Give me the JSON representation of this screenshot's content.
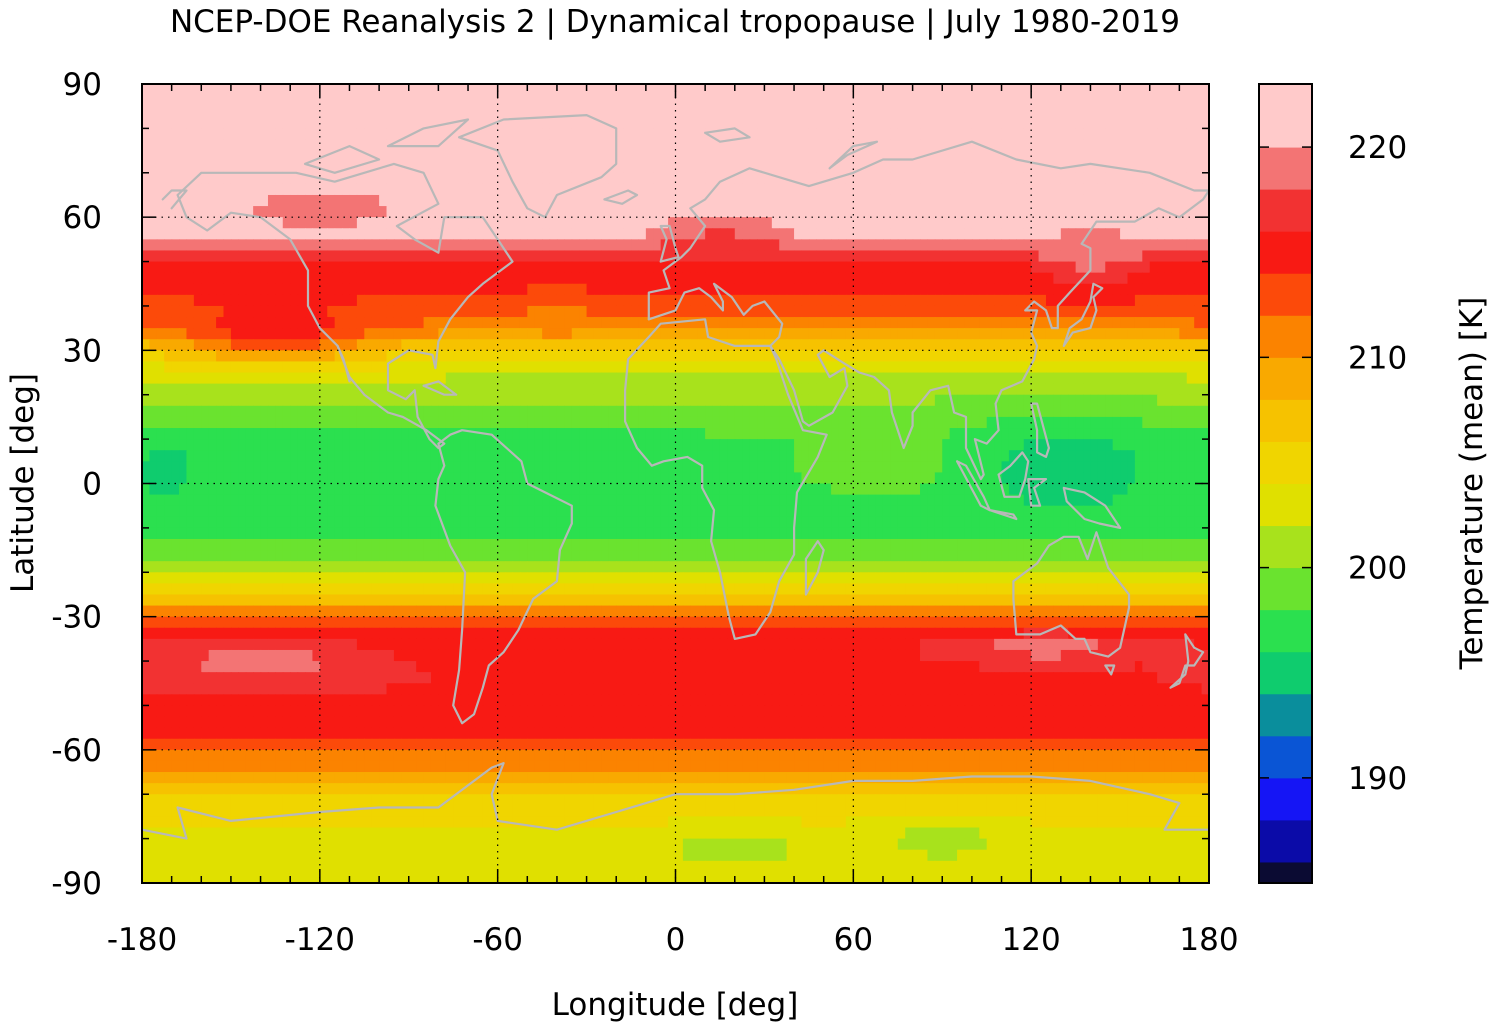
{
  "chart_data": {
    "type": "heatmap",
    "title": "NCEP-DOE Reanalysis 2 | Dynamical tropopause | July 1980-2019",
    "xlabel": "Longitude [deg]",
    "ylabel": "Latitude [deg]",
    "xlim": [
      -180,
      180
    ],
    "ylim": [
      -90,
      90
    ],
    "x_ticks": [
      "-180",
      "-120",
      "-60",
      "0",
      "60",
      "120",
      "180"
    ],
    "y_ticks": [
      "90",
      "60",
      "30",
      "0",
      "-30",
      "-60",
      "-90"
    ],
    "grid": true,
    "colorbar": {
      "label": "Temperature (mean) [K]",
      "range": [
        185,
        223
      ],
      "ticks": [
        "190",
        "200",
        "210",
        "220"
      ],
      "levels": [
        {
          "from": 185,
          "to": 186,
          "color": "#0b0b33"
        },
        {
          "from": 186,
          "to": 188,
          "color": "#0b0ba8"
        },
        {
          "from": 188,
          "to": 190,
          "color": "#1515f5"
        },
        {
          "from": 190,
          "to": 192,
          "color": "#0a55d5"
        },
        {
          "from": 192,
          "to": 194,
          "color": "#0a8e9c"
        },
        {
          "from": 194,
          "to": 196,
          "color": "#0fcc6e"
        },
        {
          "from": 196,
          "to": 198,
          "color": "#2be04f"
        },
        {
          "from": 198,
          "to": 200,
          "color": "#6ae32f"
        },
        {
          "from": 200,
          "to": 202,
          "color": "#a8e21c"
        },
        {
          "from": 202,
          "to": 204,
          "color": "#e0e000"
        },
        {
          "from": 204,
          "to": 206,
          "color": "#f0d500"
        },
        {
          "from": 206,
          "to": 208,
          "color": "#f6c200"
        },
        {
          "from": 208,
          "to": 210,
          "color": "#f9a900"
        },
        {
          "from": 210,
          "to": 212,
          "color": "#fb8300"
        },
        {
          "from": 212,
          "to": 214,
          "color": "#fc4a0a"
        },
        {
          "from": 214,
          "to": 216,
          "color": "#f81a14"
        },
        {
          "from": 216,
          "to": 218,
          "color": "#f23232"
        },
        {
          "from": 218,
          "to": 220,
          "color": "#f37474"
        },
        {
          "from": 220,
          "to": 223,
          "color": "#ffcaca"
        }
      ]
    },
    "coastline_color": "#b8b8b8",
    "zonal_profile": [
      {
        "lat": 90,
        "value": 221
      },
      {
        "lat": 55,
        "value": 221
      },
      {
        "lat": 48,
        "value": 215
      },
      {
        "lat": 42,
        "value": 214
      },
      {
        "lat": 35,
        "value": 211
      },
      {
        "lat": 30,
        "value": 205
      },
      {
        "lat": 24,
        "value": 202
      },
      {
        "lat": 15,
        "value": 199
      },
      {
        "lat": 8,
        "value": 197
      },
      {
        "lat": 0,
        "value": 197
      },
      {
        "lat": -8,
        "value": 197
      },
      {
        "lat": -15,
        "value": 199
      },
      {
        "lat": -22,
        "value": 203
      },
      {
        "lat": -27,
        "value": 208
      },
      {
        "lat": -30,
        "value": 213
      },
      {
        "lat": -35,
        "value": 215
      },
      {
        "lat": -45,
        "value": 216
      },
      {
        "lat": -55,
        "value": 215
      },
      {
        "lat": -60,
        "value": 212
      },
      {
        "lat": -66,
        "value": 209
      },
      {
        "lat": -72,
        "value": 205
      },
      {
        "lat": -82,
        "value": 203
      },
      {
        "lat": -90,
        "value": 203
      }
    ],
    "anomalies": [
      {
        "lon": -135,
        "lat": 35,
        "lon_radius": 45,
        "lat_radius": 9,
        "value": 215
      },
      {
        "lon": -120,
        "lat": 62,
        "lon_radius": 35,
        "lat_radius": 6,
        "value": 219
      },
      {
        "lon": 140,
        "lat": 52,
        "lon_radius": 18,
        "lat_radius": 10,
        "value": 219
      },
      {
        "lon": 15,
        "lat": 52,
        "lon_radius": 30,
        "lat_radius": 8,
        "value": 216
      },
      {
        "lon": -40,
        "lat": 38,
        "lon_radius": 14,
        "lat_radius": 6,
        "value": 211
      },
      {
        "lon": 75,
        "lat": 5,
        "lon_radius": 55,
        "lat_radius": 12,
        "value": 199
      },
      {
        "lon": 130,
        "lat": 3,
        "lon_radius": 40,
        "lat_radius": 14,
        "value": 195
      },
      {
        "lon": -172,
        "lat": 3,
        "lon_radius": 12,
        "lat_radius": 8,
        "value": 195
      },
      {
        "lon": -140,
        "lat": -40,
        "lon_radius": 45,
        "lat_radius": 6,
        "value": 219
      },
      {
        "lon": 125,
        "lat": -37,
        "lon_radius": 45,
        "lat_radius": 4,
        "value": 219
      },
      {
        "lon": 90,
        "lat": -80,
        "lon_radius": 25,
        "lat_radius": 6,
        "value": 201
      },
      {
        "lon": 20,
        "lat": -82,
        "lon_radius": 30,
        "lat_radius": 5,
        "value": 201
      },
      {
        "lon": -150,
        "lat": 72,
        "lon_radius": 20,
        "lat_radius": 8,
        "value": 221
      }
    ]
  }
}
